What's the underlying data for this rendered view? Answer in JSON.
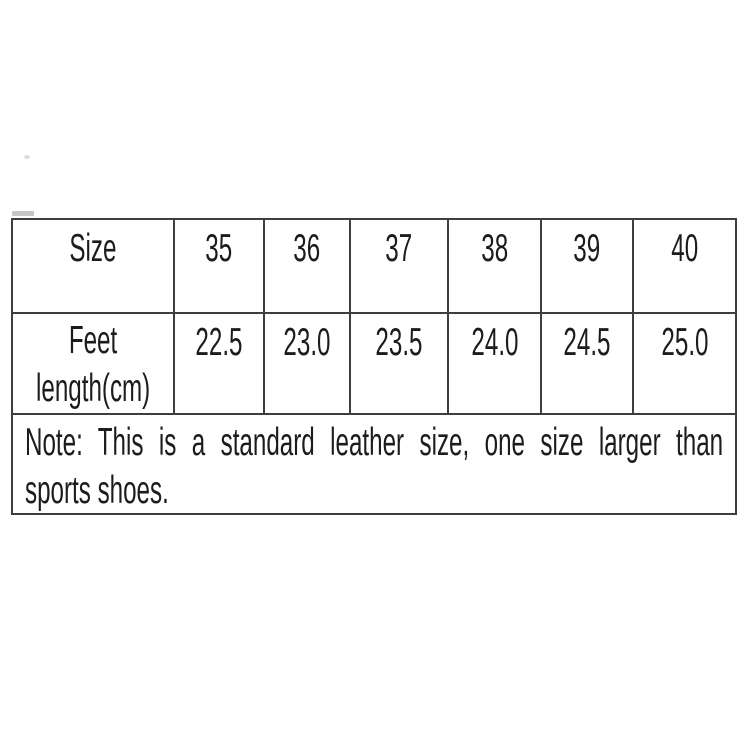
{
  "colors": {
    "background": "#ffffff",
    "text": "#1c1c1c",
    "border": "#3e3e3e"
  },
  "size_chart": {
    "header_row": {
      "label": "Size",
      "sizes": [
        "35",
        "36",
        "37",
        "38",
        "39",
        "40"
      ]
    },
    "feet_row": {
      "label_line1": "Feet",
      "label_line2": "length(cm)",
      "values": [
        "22.5",
        "23.0",
        "23.5",
        "24.0",
        "24.5",
        "25.0"
      ]
    },
    "note_row": {
      "line1": "Note: This is a standard leather size, one size larger than",
      "line2": "sports shoes."
    }
  },
  "chart_data": {
    "type": "table",
    "columns": [
      "Size",
      "35",
      "36",
      "37",
      "38",
      "39",
      "40"
    ],
    "rows": [
      [
        "Feet length(cm)",
        "22.5",
        "23.0",
        "23.5",
        "24.0",
        "24.5",
        "25.0"
      ]
    ],
    "note": "Note: This is a standard leather size, one size larger than sports shoes.",
    "layout_hints": {
      "grid": "on",
      "note_first_line_justified": true,
      "header_position": "top row"
    }
  }
}
